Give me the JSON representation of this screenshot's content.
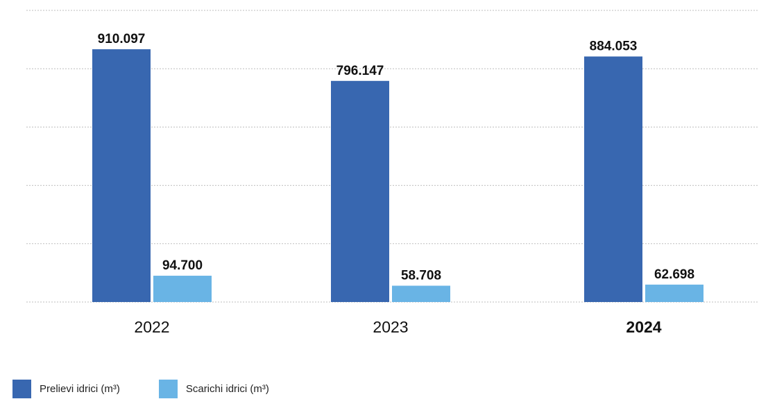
{
  "chart_data": {
    "type": "bar",
    "title": "",
    "xlabel": "",
    "ylabel": "",
    "ylim": [
      0,
      1050000
    ],
    "grid": true,
    "legend_position": "bottom-left",
    "categories": [
      "2022",
      "2023",
      "2024"
    ],
    "highlight_category": "2024",
    "series": [
      {
        "name": "Prelievi idrici (m³)",
        "color": "#3867b0",
        "values": [
          910097,
          796147,
          884053
        ],
        "labels": [
          "910.097",
          "796.147",
          "884.053"
        ]
      },
      {
        "name": "Scarichi idrici (m³)",
        "color": "#69b4e5",
        "values": [
          94700,
          58708,
          62698
        ],
        "labels": [
          "94.700",
          "58.708",
          "62.698"
        ]
      }
    ]
  }
}
